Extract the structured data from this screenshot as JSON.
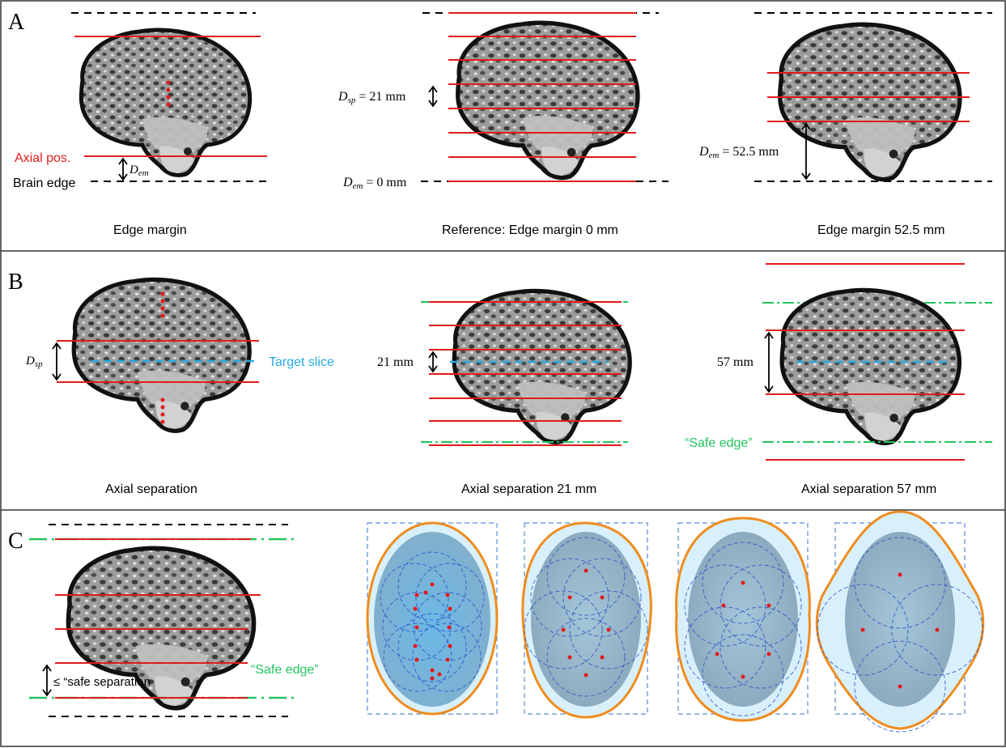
{
  "colors": {
    "red": "#e31a1c",
    "black_dashed": "#000000",
    "cyan": "#29a9e0",
    "green": "#22c55e",
    "orange": "#f08c1e",
    "light_blue_fill": "#d8f0fb",
    "blue_dashed": "#5b8dd9",
    "brain_gray": "#8a8a8a"
  },
  "panel_a": {
    "letter": "A",
    "left": {
      "axial_pos_label": "Axial pos.",
      "brain_edge_label": "Brain edge",
      "dem_symbol": "D",
      "dem_sub": "em",
      "caption": "Edge margin"
    },
    "middle": {
      "dsp_symbol": "D",
      "dsp_sub": "sp",
      "dsp_value": "= 21 mm",
      "dem_symbol": "D",
      "dem_sub": "em",
      "dem_value": "= 0 mm",
      "caption": "Reference: Edge margin 0 mm"
    },
    "right": {
      "dem_symbol": "D",
      "dem_sub": "em",
      "dem_value": "= 52.5 mm",
      "caption": "Edge margin 52.5 mm"
    }
  },
  "panel_b": {
    "letter": "B",
    "left": {
      "dsp_symbol": "D",
      "dsp_sub": "sp",
      "target_label": "Target slice",
      "caption": "Axial separation"
    },
    "middle": {
      "sep_label": "21 mm",
      "caption": "Axial separation 21 mm"
    },
    "right": {
      "sep_label": "57 mm",
      "safe_edge_label": "“Safe edge”",
      "caption": "Axial separation 57 mm"
    }
  },
  "panel_c": {
    "letter": "C",
    "safe_sep_label": "≤ “safe separation",
    "safe_edge_label": "“Safe edge”"
  }
}
